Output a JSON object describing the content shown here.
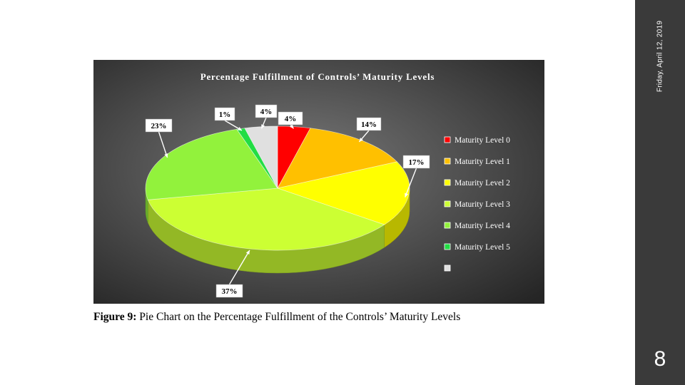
{
  "sidebar": {
    "date": "Friday, April 12, 2019",
    "page_number": "8"
  },
  "caption": {
    "label": "Figure 9:",
    "text": " Pie Chart on the Percentage Fulfillment of the Controls’ Maturity Levels"
  },
  "chart_data": {
    "type": "pie",
    "title": "Percentage Fulfillment of Controls’ Maturity Levels",
    "legend_position": "right",
    "slices": [
      {
        "name": "Maturity Level 0",
        "label": "4%",
        "value": 4,
        "color": "#ff0000"
      },
      {
        "name": "Maturity Level 1",
        "label": "14%",
        "value": 14,
        "color": "#ffc000"
      },
      {
        "name": "Maturity Level 2",
        "label": "17%",
        "value": 17,
        "color": "#ffff00"
      },
      {
        "name": "Maturity Level 3",
        "label": "37%",
        "value": 37,
        "color": "#ccff33"
      },
      {
        "name": "Maturity Level 4",
        "label": "23%",
        "value": 23,
        "color": "#92f23c"
      },
      {
        "name": "Maturity Level 5",
        "label": "1%",
        "value": 1,
        "color": "#22dd44"
      },
      {
        "name": "",
        "label": "4%",
        "value": 4,
        "color": "#e0e0e0"
      }
    ]
  }
}
